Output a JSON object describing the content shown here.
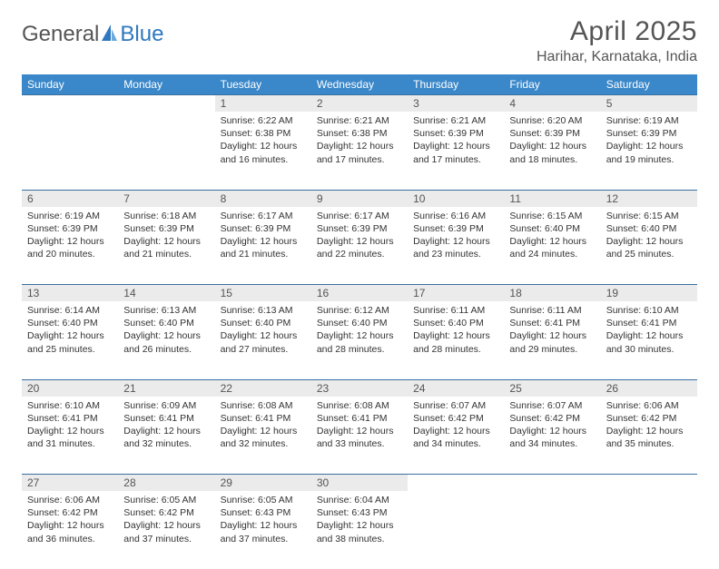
{
  "logo": {
    "text1": "General",
    "text2": "Blue"
  },
  "title": "April 2025",
  "location": "Harihar, Karnataka, India",
  "colors": {
    "header_bg": "#3a87c9",
    "header_text": "#ffffff",
    "daynum_bg": "#ebebeb",
    "row_border": "#3a6fa0",
    "logo_blue": "#2f78bf",
    "title_color": "#555555",
    "body_text": "#333333",
    "page_bg": "#ffffff"
  },
  "typography": {
    "title_fontsize": 30,
    "location_fontsize": 16,
    "dayhead_fontsize": 12,
    "daynum_fontsize": 12,
    "cell_fontsize": 10.5,
    "font_family": "Arial"
  },
  "layout": {
    "cols": 7,
    "first_day_col_index": 2,
    "days_in_month": 30
  },
  "day_names": [
    "Sunday",
    "Monday",
    "Tuesday",
    "Wednesday",
    "Thursday",
    "Friday",
    "Saturday"
  ],
  "days": [
    {
      "n": 1,
      "sr": "6:22 AM",
      "ss": "6:38 PM",
      "dl": "12 hours and 16 minutes."
    },
    {
      "n": 2,
      "sr": "6:21 AM",
      "ss": "6:38 PM",
      "dl": "12 hours and 17 minutes."
    },
    {
      "n": 3,
      "sr": "6:21 AM",
      "ss": "6:39 PM",
      "dl": "12 hours and 17 minutes."
    },
    {
      "n": 4,
      "sr": "6:20 AM",
      "ss": "6:39 PM",
      "dl": "12 hours and 18 minutes."
    },
    {
      "n": 5,
      "sr": "6:19 AM",
      "ss": "6:39 PM",
      "dl": "12 hours and 19 minutes."
    },
    {
      "n": 6,
      "sr": "6:19 AM",
      "ss": "6:39 PM",
      "dl": "12 hours and 20 minutes."
    },
    {
      "n": 7,
      "sr": "6:18 AM",
      "ss": "6:39 PM",
      "dl": "12 hours and 21 minutes."
    },
    {
      "n": 8,
      "sr": "6:17 AM",
      "ss": "6:39 PM",
      "dl": "12 hours and 21 minutes."
    },
    {
      "n": 9,
      "sr": "6:17 AM",
      "ss": "6:39 PM",
      "dl": "12 hours and 22 minutes."
    },
    {
      "n": 10,
      "sr": "6:16 AM",
      "ss": "6:39 PM",
      "dl": "12 hours and 23 minutes."
    },
    {
      "n": 11,
      "sr": "6:15 AM",
      "ss": "6:40 PM",
      "dl": "12 hours and 24 minutes."
    },
    {
      "n": 12,
      "sr": "6:15 AM",
      "ss": "6:40 PM",
      "dl": "12 hours and 25 minutes."
    },
    {
      "n": 13,
      "sr": "6:14 AM",
      "ss": "6:40 PM",
      "dl": "12 hours and 25 minutes."
    },
    {
      "n": 14,
      "sr": "6:13 AM",
      "ss": "6:40 PM",
      "dl": "12 hours and 26 minutes."
    },
    {
      "n": 15,
      "sr": "6:13 AM",
      "ss": "6:40 PM",
      "dl": "12 hours and 27 minutes."
    },
    {
      "n": 16,
      "sr": "6:12 AM",
      "ss": "6:40 PM",
      "dl": "12 hours and 28 minutes."
    },
    {
      "n": 17,
      "sr": "6:11 AM",
      "ss": "6:40 PM",
      "dl": "12 hours and 28 minutes."
    },
    {
      "n": 18,
      "sr": "6:11 AM",
      "ss": "6:41 PM",
      "dl": "12 hours and 29 minutes."
    },
    {
      "n": 19,
      "sr": "6:10 AM",
      "ss": "6:41 PM",
      "dl": "12 hours and 30 minutes."
    },
    {
      "n": 20,
      "sr": "6:10 AM",
      "ss": "6:41 PM",
      "dl": "12 hours and 31 minutes."
    },
    {
      "n": 21,
      "sr": "6:09 AM",
      "ss": "6:41 PM",
      "dl": "12 hours and 32 minutes."
    },
    {
      "n": 22,
      "sr": "6:08 AM",
      "ss": "6:41 PM",
      "dl": "12 hours and 32 minutes."
    },
    {
      "n": 23,
      "sr": "6:08 AM",
      "ss": "6:41 PM",
      "dl": "12 hours and 33 minutes."
    },
    {
      "n": 24,
      "sr": "6:07 AM",
      "ss": "6:42 PM",
      "dl": "12 hours and 34 minutes."
    },
    {
      "n": 25,
      "sr": "6:07 AM",
      "ss": "6:42 PM",
      "dl": "12 hours and 34 minutes."
    },
    {
      "n": 26,
      "sr": "6:06 AM",
      "ss": "6:42 PM",
      "dl": "12 hours and 35 minutes."
    },
    {
      "n": 27,
      "sr": "6:06 AM",
      "ss": "6:42 PM",
      "dl": "12 hours and 36 minutes."
    },
    {
      "n": 28,
      "sr": "6:05 AM",
      "ss": "6:42 PM",
      "dl": "12 hours and 37 minutes."
    },
    {
      "n": 29,
      "sr": "6:05 AM",
      "ss": "6:43 PM",
      "dl": "12 hours and 37 minutes."
    },
    {
      "n": 30,
      "sr": "6:04 AM",
      "ss": "6:43 PM",
      "dl": "12 hours and 38 minutes."
    }
  ],
  "labels": {
    "sunrise": "Sunrise:",
    "sunset": "Sunset:",
    "daylight": "Daylight:"
  }
}
